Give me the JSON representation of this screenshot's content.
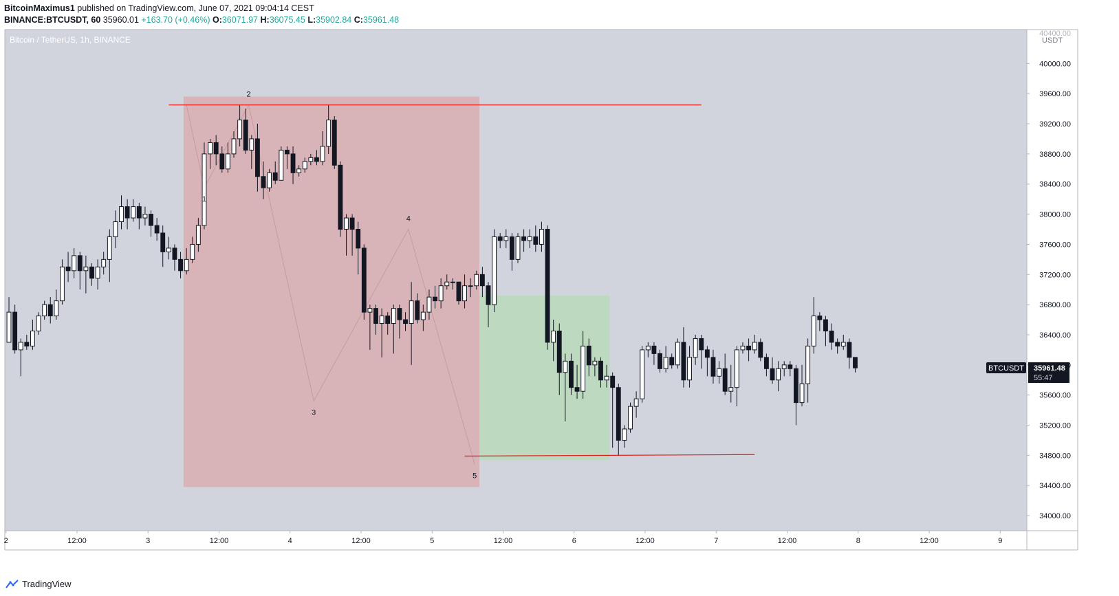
{
  "header": {
    "author": "BitcoinMaximus1",
    "published_text": "published on TradingView.com, June 07, 2021 09:04:14 CEST",
    "symbol": "BINANCE:BTCUSDT, 60",
    "last": "35960.01",
    "change": "+163.70 (+0.46%)",
    "o_label": "O:",
    "o_value": "36071.97",
    "h_label": "H:",
    "h_value": "36075.45",
    "l_label": "L:",
    "l_value": "35902.84",
    "c_label": "C:",
    "c_value": "35961.48"
  },
  "footer": {
    "brand": "TradingView"
  },
  "colors": {
    "background": "#d1d4dc",
    "bull_body": "#ffffff",
    "bear_body": "#131722",
    "red_zone": "#d8b4b8",
    "green_zone": "#bdd9bf",
    "red_line": "#e0201b"
  },
  "chart_data": {
    "type": "candlestick",
    "title": "Bitcoin / TetherUS, 1h, BINANCE",
    "y_axis_unit": "USDT",
    "ylim": [
      33800,
      40450
    ],
    "y_ticks": [
      "40000.00",
      "39600.00",
      "39200.00",
      "38800.00",
      "38400.00",
      "38000.00",
      "37600.00",
      "37200.00",
      "36800.00",
      "36400.00",
      "36000.00",
      "35600.00",
      "35200.00",
      "34800.00",
      "34400.00",
      "34000.00"
    ],
    "y_tick_values": [
      40000,
      39600,
      39200,
      38800,
      38400,
      38000,
      37600,
      37200,
      36800,
      36400,
      36000,
      35600,
      35200,
      34800,
      34400,
      34000
    ],
    "top_tick_partial": "40400.00",
    "x_ticks": [
      {
        "label": "2",
        "hour": 0
      },
      {
        "label": "12:00",
        "hour": 12
      },
      {
        "label": "3",
        "hour": 24
      },
      {
        "label": "12:00",
        "hour": 36
      },
      {
        "label": "4",
        "hour": 48
      },
      {
        "label": "12:00",
        "hour": 60
      },
      {
        "label": "5",
        "hour": 72
      },
      {
        "label": "12:00",
        "hour": 84
      },
      {
        "label": "6",
        "hour": 96
      },
      {
        "label": "12:00",
        "hour": 108
      },
      {
        "label": "7",
        "hour": 120
      },
      {
        "label": "12:00",
        "hour": 132
      },
      {
        "label": "8",
        "hour": 144
      },
      {
        "label": "12:00",
        "hour": 156
      },
      {
        "label": "9",
        "hour": 168
      }
    ],
    "xlim": [
      -0.2,
      172.5
    ],
    "price_tag": {
      "symbol": "BTCUSDT",
      "price": "35961.48",
      "countdown": "55:47",
      "value": 35961.48
    },
    "candles": [
      [
        36300,
        36700,
        36300,
        36900
      ],
      [
        36700,
        36200,
        36150,
        36800
      ],
      [
        36200,
        36300,
        35850,
        36350
      ],
      [
        36300,
        36250,
        36200,
        36400
      ],
      [
        36250,
        36450,
        36200,
        36600
      ],
      [
        36450,
        36650,
        36400,
        36700
      ],
      [
        36650,
        36800,
        36600,
        36850
      ],
      [
        36800,
        36650,
        36550,
        36900
      ],
      [
        36650,
        36850,
        36600,
        37000
      ],
      [
        36850,
        37300,
        36800,
        37400
      ],
      [
        37300,
        37250,
        37100,
        37500
      ],
      [
        37250,
        37450,
        37150,
        37550
      ],
      [
        37450,
        37250,
        37000,
        37500
      ],
      [
        37250,
        37300,
        36950,
        37450
      ],
      [
        37300,
        37150,
        37050,
        37350
      ],
      [
        37150,
        37300,
        37000,
        37400
      ],
      [
        37300,
        37400,
        37200,
        37500
      ],
      [
        37400,
        37700,
        37100,
        37800
      ],
      [
        37700,
        37900,
        37550,
        38050
      ],
      [
        37900,
        38100,
        37800,
        38250
      ],
      [
        38100,
        37950,
        37800,
        38200
      ],
      [
        37950,
        38100,
        37900,
        38200
      ],
      [
        38100,
        37950,
        37800,
        38150
      ],
      [
        37950,
        38000,
        37850,
        38100
      ],
      [
        38000,
        37850,
        37700,
        38050
      ],
      [
        37850,
        37750,
        37650,
        37950
      ],
      [
        37750,
        37500,
        37300,
        37850
      ],
      [
        37500,
        37550,
        37400,
        37700
      ],
      [
        37550,
        37400,
        37250,
        37600
      ],
      [
        37400,
        37250,
        37150,
        37500
      ],
      [
        37250,
        37400,
        37200,
        37550
      ],
      [
        37400,
        37600,
        37350,
        37700
      ],
      [
        37600,
        37850,
        37500,
        37950
      ],
      [
        37850,
        38800,
        37800,
        38950
      ],
      [
        38800,
        38950,
        38600,
        39000
      ],
      [
        38950,
        38800,
        38650,
        39050
      ],
      [
        38800,
        38600,
        38550,
        38900
      ],
      [
        38600,
        38800,
        38550,
        38950
      ],
      [
        38800,
        39000,
        38750,
        39100
      ],
      [
        39000,
        39250,
        38900,
        39450
      ],
      [
        39250,
        38850,
        38800,
        39400
      ],
      [
        38850,
        39000,
        38600,
        39050
      ],
      [
        39000,
        38500,
        38300,
        39200
      ],
      [
        38500,
        38350,
        38200,
        38700
      ],
      [
        38350,
        38550,
        38300,
        38600
      ],
      [
        38550,
        38450,
        38400,
        38700
      ],
      [
        38450,
        38850,
        38450,
        38900
      ],
      [
        38850,
        38800,
        38600,
        38900
      ],
      [
        38800,
        38550,
        38400,
        38900
      ],
      [
        38550,
        38600,
        38500,
        38650
      ],
      [
        38600,
        38700,
        38550,
        38750
      ],
      [
        38700,
        38750,
        38650,
        38800
      ],
      [
        38750,
        38700,
        38650,
        38850
      ],
      [
        38700,
        38900,
        38650,
        39100
      ],
      [
        38900,
        39250,
        38800,
        39450
      ],
      [
        39250,
        38650,
        38600,
        39300
      ],
      [
        38650,
        37800,
        37700,
        38700
      ],
      [
        37800,
        37950,
        37450,
        38000
      ],
      [
        37950,
        37800,
        37450,
        38000
      ],
      [
        37800,
        37550,
        37200,
        37900
      ],
      [
        37550,
        36700,
        36600,
        37600
      ],
      [
        36700,
        36750,
        36200,
        36800
      ],
      [
        36750,
        36550,
        36400,
        36800
      ],
      [
        36550,
        36650,
        36100,
        36750
      ],
      [
        36650,
        36550,
        36400,
        36700
      ],
      [
        36550,
        36750,
        36150,
        36800
      ],
      [
        36750,
        36600,
        36350,
        36800
      ],
      [
        36600,
        36550,
        36450,
        36700
      ],
      [
        36550,
        36850,
        36000,
        37100
      ],
      [
        36850,
        36600,
        36550,
        36950
      ],
      [
        36600,
        36700,
        36450,
        36800
      ],
      [
        36700,
        36900,
        36600,
        37000
      ],
      [
        36900,
        36850,
        36750,
        37050
      ],
      [
        36850,
        37050,
        36750,
        37150
      ],
      [
        37050,
        37100,
        37000,
        37200
      ],
      [
        37100,
        37100,
        37000,
        37150
      ],
      [
        37100,
        36850,
        36800,
        37100
      ],
      [
        36850,
        37050,
        36750,
        37200
      ],
      [
        37050,
        37050,
        36900,
        37150
      ],
      [
        37050,
        37200,
        37000,
        37250
      ],
      [
        37200,
        37050,
        36900,
        37300
      ],
      [
        37050,
        36800,
        36500,
        37100
      ],
      [
        36800,
        37700,
        36700,
        37800
      ],
      [
        37700,
        37650,
        37550,
        37750
      ],
      [
        37650,
        37700,
        37550,
        37800
      ],
      [
        37700,
        37400,
        37250,
        37750
      ],
      [
        37400,
        37700,
        37350,
        37750
      ],
      [
        37700,
        37650,
        37500,
        37800
      ],
      [
        37650,
        37700,
        37550,
        37800
      ],
      [
        37700,
        37600,
        37500,
        37850
      ],
      [
        37600,
        37800,
        37500,
        37900
      ],
      [
        37800,
        36300,
        36200,
        37850
      ],
      [
        36300,
        36450,
        36050,
        36600
      ],
      [
        36450,
        35900,
        35600,
        36550
      ],
      [
        35900,
        36050,
        35250,
        36150
      ],
      [
        36050,
        35700,
        35600,
        36150
      ],
      [
        35700,
        35650,
        35550,
        36000
      ],
      [
        35650,
        36250,
        35550,
        36450
      ],
      [
        36250,
        36000,
        35850,
        36350
      ],
      [
        36000,
        36050,
        35850,
        36100
      ],
      [
        36050,
        35800,
        35700,
        36100
      ],
      [
        35800,
        35850,
        35700,
        36000
      ],
      [
        35850,
        35700,
        34900,
        35900
      ],
      [
        35700,
        35000,
        34800,
        35750
      ],
      [
        35000,
        35150,
        34900,
        35200
      ],
      [
        35150,
        35450,
        35100,
        35500
      ],
      [
        35450,
        35550,
        35300,
        35650
      ],
      [
        35550,
        36200,
        35500,
        36250
      ],
      [
        36200,
        36250,
        36100,
        36300
      ],
      [
        36250,
        36150,
        36000,
        36300
      ],
      [
        36150,
        35950,
        35900,
        36200
      ],
      [
        35950,
        36100,
        35900,
        36250
      ],
      [
        36100,
        36000,
        35950,
        36150
      ],
      [
        36000,
        36300,
        35950,
        36350
      ],
      [
        36300,
        35800,
        35700,
        36500
      ],
      [
        35800,
        36100,
        35700,
        36250
      ],
      [
        36100,
        36350,
        36000,
        36400
      ],
      [
        36350,
        36200,
        35950,
        36400
      ],
      [
        36200,
        36100,
        35850,
        36250
      ],
      [
        36100,
        35850,
        35750,
        36200
      ],
      [
        35850,
        35950,
        35750,
        36050
      ],
      [
        35950,
        35650,
        35600,
        36150
      ],
      [
        35650,
        35700,
        35500,
        36000
      ],
      [
        35700,
        36200,
        35450,
        36250
      ],
      [
        36200,
        36250,
        36150,
        36300
      ],
      [
        36250,
        36200,
        36050,
        36350
      ],
      [
        36200,
        36300,
        36150,
        36400
      ],
      [
        36300,
        36100,
        36050,
        36350
      ],
      [
        36100,
        35950,
        35850,
        36150
      ],
      [
        35950,
        35800,
        35750,
        36100
      ],
      [
        35800,
        35950,
        35650,
        36050
      ],
      [
        35950,
        36000,
        35850,
        36050
      ],
      [
        36000,
        35950,
        35850,
        36050
      ],
      [
        35950,
        35500,
        35200,
        36000
      ],
      [
        35500,
        35750,
        35450,
        36000
      ],
      [
        35750,
        36250,
        35500,
        36350
      ],
      [
        36250,
        36650,
        36150,
        36900
      ],
      [
        36650,
        36600,
        36450,
        36700
      ],
      [
        36600,
        36450,
        36250,
        36650
      ],
      [
        36450,
        36300,
        36200,
        36550
      ],
      [
        36300,
        36250,
        36150,
        36350
      ],
      [
        36250,
        36300,
        36200,
        36400
      ],
      [
        36300,
        36100,
        35950,
        36350
      ],
      [
        36100,
        35960,
        35900,
        36100
      ]
    ],
    "red_zone": {
      "x_start": 30,
      "x_end": 80,
      "y_top": 39560,
      "y_bottom": 34380
    },
    "green_zone": {
      "x_start": 80,
      "x_end": 102,
      "y_top": 36920,
      "y_bottom": 34740
    },
    "horizontal_lines": [
      {
        "x_start": 27.5,
        "x_end": 117.5,
        "y_start": 39450,
        "y_end": 39450
      },
      {
        "x_start": 77.5,
        "x_end": 126.5,
        "y_start": 34790,
        "y_end": 34810
      }
    ],
    "wave_path": [
      [
        30.5,
        39450
      ],
      [
        33.5,
        38350
      ],
      [
        41,
        39450
      ],
      [
        52,
        35520
      ],
      [
        68,
        37800
      ],
      [
        79.2,
        34680
      ]
    ],
    "wave_labels": [
      {
        "label": "1",
        "x": 33.5,
        "y": 38350,
        "pos": "below"
      },
      {
        "label": "2",
        "x": 41,
        "y": 39450,
        "pos": "above"
      },
      {
        "label": "3",
        "x": 52,
        "y": 35520,
        "pos": "below"
      },
      {
        "label": "4",
        "x": 68,
        "y": 37800,
        "pos": "above"
      },
      {
        "label": "5",
        "x": 79.2,
        "y": 34680,
        "pos": "below"
      }
    ]
  }
}
